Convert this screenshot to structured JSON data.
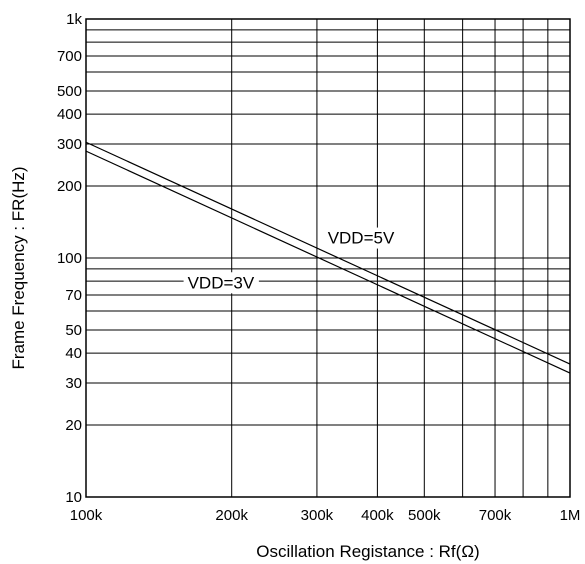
{
  "chart_data": {
    "type": "line",
    "title": "",
    "xlabel": "Oscillation Registance : Rf(Ω)",
    "ylabel": "Frame Frequency : FR(Hz)",
    "x_scale": "log",
    "y_scale": "log",
    "xlim": [
      100000,
      1000000
    ],
    "ylim": [
      10,
      1000
    ],
    "grid": true,
    "x_gridlines": [
      100000,
      200000,
      300000,
      400000,
      500000,
      600000,
      700000,
      800000,
      900000,
      1000000
    ],
    "y_gridlines": [
      10,
      20,
      30,
      40,
      50,
      60,
      70,
      80,
      90,
      100,
      200,
      300,
      400,
      500,
      600,
      700,
      800,
      900,
      1000
    ],
    "x_ticks": [
      {
        "value": 100000,
        "label": "100k"
      },
      {
        "value": 200000,
        "label": "200k"
      },
      {
        "value": 300000,
        "label": "300k"
      },
      {
        "value": 400000,
        "label": "400k"
      },
      {
        "value": 500000,
        "label": "500k"
      },
      {
        "value": 700000,
        "label": "700k"
      },
      {
        "value": 1000000,
        "label": "1M"
      }
    ],
    "y_ticks": [
      {
        "value": 10,
        "label": "10"
      },
      {
        "value": 20,
        "label": "20"
      },
      {
        "value": 30,
        "label": "30"
      },
      {
        "value": 40,
        "label": "40"
      },
      {
        "value": 50,
        "label": "50"
      },
      {
        "value": 70,
        "label": "70"
      },
      {
        "value": 100,
        "label": "100"
      },
      {
        "value": 200,
        "label": "200"
      },
      {
        "value": 300,
        "label": "300"
      },
      {
        "value": 400,
        "label": "400"
      },
      {
        "value": 500,
        "label": "500"
      },
      {
        "value": 700,
        "label": "700"
      },
      {
        "value": 1000,
        "label": "1k"
      }
    ],
    "series": [
      {
        "name": "VDD=5V",
        "x": [
          100000,
          1000000
        ],
        "y": [
          305,
          36
        ]
      },
      {
        "name": "VDD=3V",
        "x": [
          100000,
          1000000
        ],
        "y": [
          280,
          33
        ]
      }
    ],
    "annotations": [
      {
        "text": "VDD=5V",
        "x": 370000,
        "y": 120
      },
      {
        "text": "VDD=3V",
        "x": 190000,
        "y": 78
      }
    ],
    "legend": "none"
  }
}
